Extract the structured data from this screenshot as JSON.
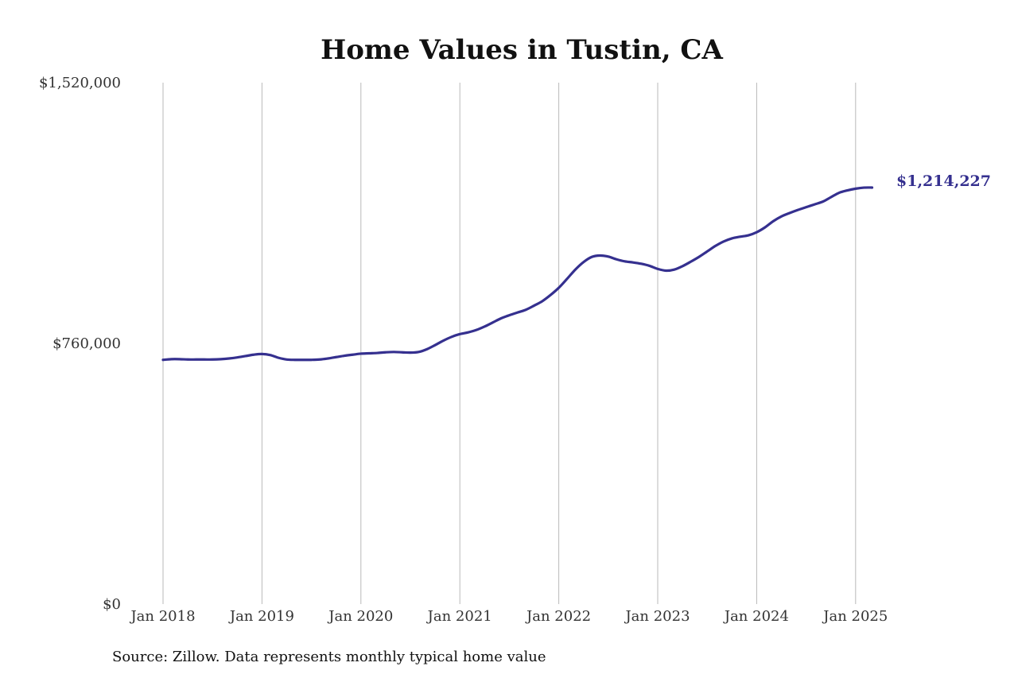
{
  "chart_data": {
    "type": "line",
    "title": "Home Values in Tustin, CA",
    "xlabel": "",
    "ylabel": "",
    "y_ticks": [
      "$0",
      "$760,000",
      "$1,520,000"
    ],
    "y_tick_values": [
      0,
      760000,
      1520000
    ],
    "ylim": [
      0,
      1520000
    ],
    "x_tick_labels": [
      "Jan 2018",
      "Jan 2019",
      "Jan 2020",
      "Jan 2021",
      "Jan 2022",
      "Jan 2023",
      "Jan 2024",
      "Jan 2025"
    ],
    "x_tick_values": [
      "2018-01",
      "2019-01",
      "2020-01",
      "2021-01",
      "2022-01",
      "2023-01",
      "2024-01",
      "2025-01"
    ],
    "xlim": [
      "2018-01",
      "2025-03"
    ],
    "grid": "vertical",
    "line_color": "#35308f",
    "end_label": "$1,214,227",
    "series": [
      {
        "x": [
          "2018-01",
          "2018-02",
          "2018-03",
          "2018-04",
          "2018-05",
          "2018-06",
          "2018-07",
          "2018-08",
          "2018-09",
          "2018-10",
          "2018-11",
          "2018-12",
          "2019-01",
          "2019-02",
          "2019-03",
          "2019-04",
          "2019-05",
          "2019-06",
          "2019-07",
          "2019-08",
          "2019-09",
          "2019-10",
          "2019-11",
          "2019-12",
          "2020-01",
          "2020-02",
          "2020-03",
          "2020-04",
          "2020-05",
          "2020-06",
          "2020-07",
          "2020-08",
          "2020-09",
          "2020-10",
          "2020-11",
          "2020-12",
          "2021-01",
          "2021-02",
          "2021-03",
          "2021-04",
          "2021-05",
          "2021-06",
          "2021-07",
          "2021-08",
          "2021-09",
          "2021-10",
          "2021-11",
          "2021-12",
          "2022-01",
          "2022-02",
          "2022-03",
          "2022-04",
          "2022-05",
          "2022-06",
          "2022-07",
          "2022-08",
          "2022-09",
          "2022-10",
          "2022-11",
          "2022-12",
          "2023-01",
          "2023-02",
          "2023-03",
          "2023-04",
          "2023-05",
          "2023-06",
          "2023-07",
          "2023-08",
          "2023-09",
          "2023-10",
          "2023-11",
          "2023-12",
          "2024-01",
          "2024-02",
          "2024-03",
          "2024-04",
          "2024-05",
          "2024-06",
          "2024-07",
          "2024-08",
          "2024-09",
          "2024-10",
          "2024-11",
          "2024-12",
          "2025-01",
          "2025-02",
          "2025-03"
        ],
        "values": [
          712000,
          714000,
          714000,
          713000,
          713000,
          713000,
          713000,
          714000,
          716000,
          719000,
          723000,
          727000,
          729000,
          726000,
          718000,
          713000,
          712000,
          712000,
          712000,
          713000,
          716000,
          720000,
          724000,
          727000,
          730000,
          731000,
          732000,
          734000,
          735000,
          734000,
          733000,
          735000,
          743000,
          755000,
          768000,
          779000,
          787000,
          792000,
          799000,
          809000,
          821000,
          833000,
          842000,
          850000,
          858000,
          870000,
          883000,
          901000,
          922000,
          948000,
          975000,
          997000,
          1012000,
          1016000,
          1013000,
          1005000,
          999000,
          996000,
          992000,
          986000,
          977000,
          972000,
          975000,
          985000,
          998000,
          1012000,
          1028000,
          1044000,
          1057000,
          1066000,
          1071000,
          1075000,
          1084000,
          1098000,
          1116000,
          1130000,
          1140000,
          1149000,
          1157000,
          1165000,
          1173000,
          1186000,
          1199000,
          1206000,
          1211000,
          1214000,
          1214227
        ]
      }
    ]
  },
  "source_note": "Source: Zillow. Data represents monthly typical home value"
}
